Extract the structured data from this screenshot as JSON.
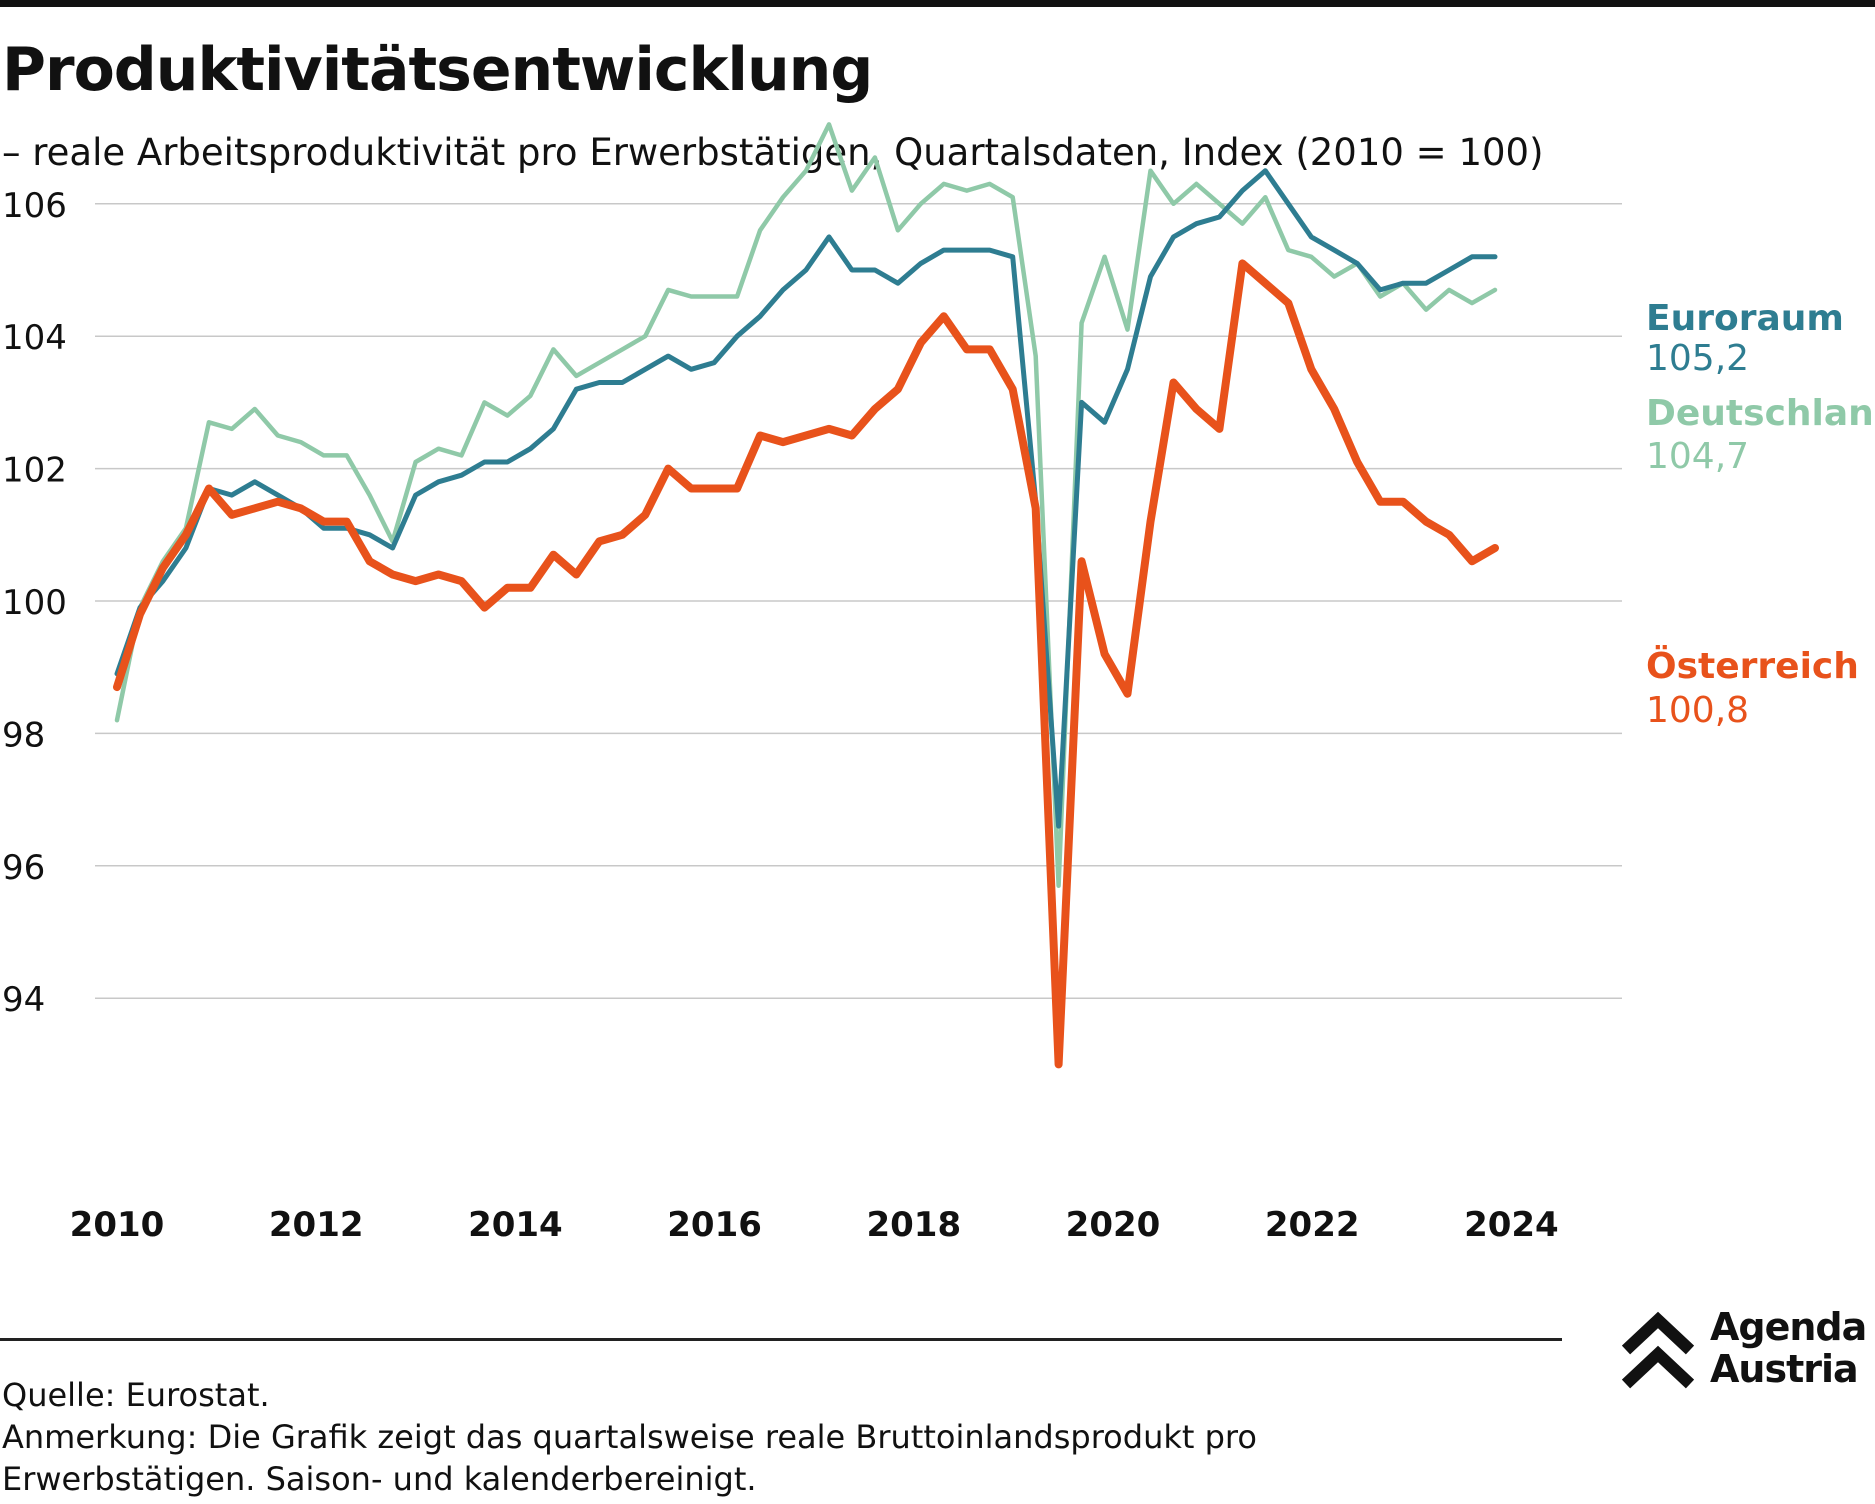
{
  "header": {
    "title": "Produktivitätsentwicklung",
    "subtitle": "– reale Arbeitsproduktivität pro Erwerbstätigen, Quartalsdaten, Index (2010 = 100)"
  },
  "chart_data": {
    "type": "line",
    "title": "Produktivitätsentwicklung",
    "subtitle": "– reale Arbeitsproduktivität pro Erwerbstätigen, Quartalsdaten, Index (2010 = 100)",
    "xlabel": "",
    "ylabel": "",
    "xlim": [
      2010,
      2025
    ],
    "ylim": [
      93,
      107.5
    ],
    "x_ticks": [
      "2010",
      "2012",
      "2014",
      "2016",
      "2018",
      "2020",
      "2022",
      "2024"
    ],
    "y_ticks": [
      "94",
      "96",
      "98",
      "100",
      "102",
      "104",
      "106"
    ],
    "grid": "horizontal",
    "legend": "direct labels at line ends (right)",
    "x": [
      "2010Q1",
      "2010Q2",
      "2010Q3",
      "2010Q4",
      "2011Q1",
      "2011Q2",
      "2011Q3",
      "2011Q4",
      "2012Q1",
      "2012Q2",
      "2012Q3",
      "2012Q4",
      "2013Q1",
      "2013Q2",
      "2013Q3",
      "2013Q4",
      "2014Q1",
      "2014Q2",
      "2014Q3",
      "2014Q4",
      "2015Q1",
      "2015Q2",
      "2015Q3",
      "2015Q4",
      "2016Q1",
      "2016Q2",
      "2016Q3",
      "2016Q4",
      "2017Q1",
      "2017Q2",
      "2017Q3",
      "2017Q4",
      "2018Q1",
      "2018Q2",
      "2018Q3",
      "2018Q4",
      "2019Q1",
      "2019Q2",
      "2019Q3",
      "2019Q4",
      "2020Q1",
      "2020Q2",
      "2020Q3",
      "2020Q4",
      "2021Q1",
      "2021Q2",
      "2021Q3",
      "2021Q4",
      "2022Q1",
      "2022Q2",
      "2022Q3",
      "2022Q4",
      "2023Q1",
      "2023Q2",
      "2023Q3",
      "2023Q4",
      "2024Q1",
      "2024Q2",
      "2024Q3",
      "2024Q4",
      "2025Q1"
    ],
    "series": [
      {
        "name": "Deutschland",
        "end_label": "104,7",
        "color": "#8fc9a8",
        "values": [
          98.2,
          99.9,
          100.6,
          101.1,
          102.7,
          102.6,
          102.9,
          102.5,
          102.4,
          102.2,
          102.2,
          101.6,
          100.9,
          102.1,
          102.3,
          102.2,
          103.0,
          102.8,
          103.1,
          103.8,
          103.4,
          103.6,
          103.8,
          104.0,
          104.7,
          104.6,
          104.6,
          104.6,
          105.6,
          106.1,
          106.5,
          107.2,
          106.2,
          106.7,
          105.6,
          106.0,
          106.3,
          106.2,
          106.3,
          106.1,
          103.7,
          95.7,
          104.2,
          105.2,
          104.1,
          106.5,
          106.0,
          106.3,
          106.0,
          105.7,
          106.1,
          105.3,
          105.2,
          104.9,
          105.1,
          104.6,
          104.8,
          104.4,
          104.7,
          104.5,
          104.7
        ]
      },
      {
        "name": "Euroraum",
        "end_label": "105,2",
        "color": "#2e7d91",
        "values": [
          98.9,
          99.9,
          100.3,
          100.8,
          101.7,
          101.6,
          101.8,
          101.6,
          101.4,
          101.1,
          101.1,
          101.0,
          100.8,
          101.6,
          101.8,
          101.9,
          102.1,
          102.1,
          102.3,
          102.6,
          103.2,
          103.3,
          103.3,
          103.5,
          103.7,
          103.5,
          103.6,
          104.0,
          104.3,
          104.7,
          105.0,
          105.5,
          105.0,
          105.0,
          104.8,
          105.1,
          105.3,
          105.3,
          105.3,
          105.2,
          101.5,
          96.6,
          103.0,
          102.7,
          103.5,
          104.9,
          105.5,
          105.7,
          105.8,
          106.2,
          106.5,
          106.0,
          105.5,
          105.3,
          105.1,
          104.7,
          104.8,
          104.8,
          105.0,
          105.2,
          105.2
        ]
      },
      {
        "name": "Österreich",
        "end_label": "100,8",
        "color": "#e8521b",
        "values": [
          98.7,
          99.8,
          100.5,
          101.0,
          101.7,
          101.3,
          101.4,
          101.5,
          101.4,
          101.2,
          101.2,
          100.6,
          100.4,
          100.3,
          100.4,
          100.3,
          99.9,
          100.2,
          100.2,
          100.7,
          100.4,
          100.9,
          101.0,
          101.3,
          102.0,
          101.7,
          101.7,
          101.7,
          102.5,
          102.4,
          102.5,
          102.6,
          102.5,
          102.9,
          103.2,
          103.9,
          104.3,
          103.8,
          103.8,
          103.2,
          101.4,
          93.0,
          100.6,
          99.2,
          98.6,
          101.2,
          103.3,
          102.9,
          102.6,
          105.1,
          104.8,
          104.5,
          103.5,
          102.9,
          102.1,
          101.5,
          101.5,
          101.2,
          101.0,
          100.6,
          100.8
        ]
      }
    ]
  },
  "footer": {
    "source": "Quelle: Eurostat.",
    "note_line1": "Anmerkung: Die Grafik zeigt das quartalsweise reale Bruttoinlandsprodukt pro",
    "note_line2": "Erwerbstätigen. Saison- und kalenderbereinigt."
  },
  "logo": {
    "line1": "Agenda",
    "line2": "Austria"
  },
  "colors": {
    "text": "#111111",
    "grid": "#c8c8c8",
    "axis": "#222222"
  }
}
